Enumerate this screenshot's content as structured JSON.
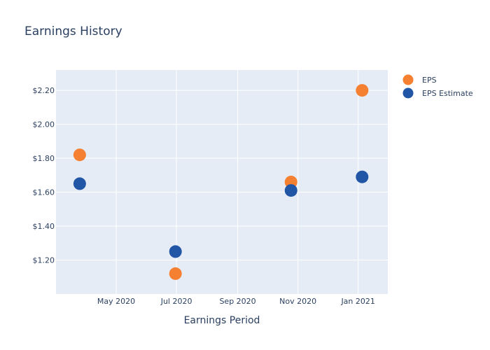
{
  "chart_data": {
    "type": "scatter",
    "title": "Earnings History",
    "xlabel": "Earnings Period",
    "ylabel": "",
    "x_axis_type": "date",
    "xlim": [
      "2020-03-01",
      "2021-01-31"
    ],
    "ylim": [
      1.0,
      2.32
    ],
    "x_ticks": [
      {
        "date": "2020-05-01",
        "label": "May 2020"
      },
      {
        "date": "2020-07-01",
        "label": "Jul 2020"
      },
      {
        "date": "2020-09-01",
        "label": "Sep 2020"
      },
      {
        "date": "2020-11-01",
        "label": "Nov 2020"
      },
      {
        "date": "2021-01-01",
        "label": "Jan 2021"
      }
    ],
    "y_ticks": [
      {
        "value": 1.2,
        "label": "$1.20"
      },
      {
        "value": 1.4,
        "label": "$1.40"
      },
      {
        "value": 1.6,
        "label": "$1.60"
      },
      {
        "value": 1.8,
        "label": "$1.80"
      },
      {
        "value": 2.0,
        "label": "$2.00"
      },
      {
        "value": 2.2,
        "label": "$2.20"
      }
    ],
    "grid": true,
    "legend_position": "top-right",
    "series": [
      {
        "name": "EPS",
        "color": "#f58031",
        "points": [
          {
            "x": "2020-03-25",
            "y": 1.82
          },
          {
            "x": "2020-06-30",
            "y": 1.12
          },
          {
            "x": "2020-10-25",
            "y": 1.66
          },
          {
            "x": "2021-01-05",
            "y": 2.2
          }
        ]
      },
      {
        "name": "EPS Estimate",
        "color": "#2155a6",
        "points": [
          {
            "x": "2020-03-25",
            "y": 1.65
          },
          {
            "x": "2020-06-30",
            "y": 1.25
          },
          {
            "x": "2020-10-25",
            "y": 1.61
          },
          {
            "x": "2021-01-05",
            "y": 1.69
          }
        ]
      }
    ],
    "plot_background": "#e5ecf6"
  }
}
